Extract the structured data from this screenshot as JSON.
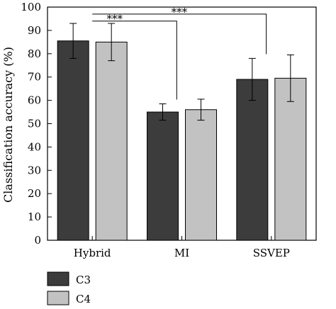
{
  "chart_data": {
    "type": "bar",
    "title": "",
    "xlabel": "",
    "ylabel": "Classification accuracy (%)",
    "ylim": [
      0,
      100
    ],
    "yticks": [
      0,
      10,
      20,
      30,
      40,
      50,
      60,
      70,
      80,
      90,
      100
    ],
    "grid": false,
    "categories": [
      "Hybrid",
      "MI",
      "SSVEP"
    ],
    "series": [
      {
        "name": "C3",
        "color": "#3c3c3c",
        "values": [
          85.5,
          55.0,
          69.0
        ],
        "errors": [
          7.5,
          3.5,
          9.0
        ]
      },
      {
        "name": "C4",
        "color": "#c2c2c2",
        "values": [
          85.0,
          56.0,
          69.5
        ],
        "errors": [
          8.0,
          4.5,
          10.0
        ]
      }
    ],
    "legend_position": "bottom-left",
    "annotations": [
      {
        "label": "***",
        "from": "Hybrid",
        "to": "MI"
      },
      {
        "label": "***",
        "from": "Hybrid",
        "to": "SSVEP"
      }
    ]
  }
}
